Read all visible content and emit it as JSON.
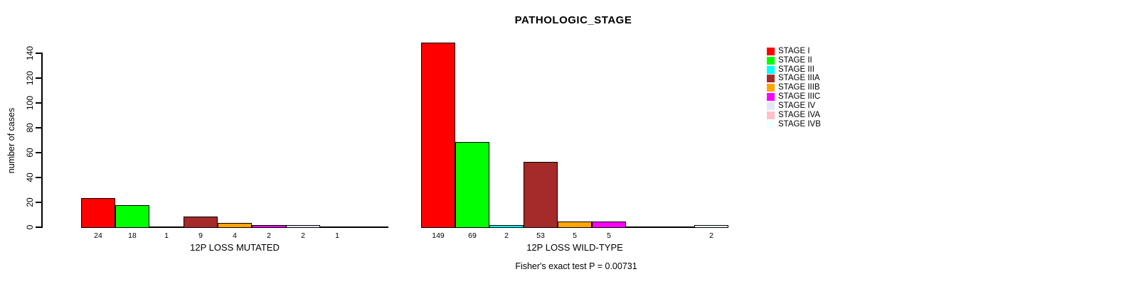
{
  "chart_data": {
    "type": "bar",
    "title": "PATHOLOGIC_STAGE",
    "ylabel": "number of cases",
    "ylim": [
      0,
      140
    ],
    "yticks": [
      0,
      20,
      40,
      60,
      80,
      100,
      120,
      140
    ],
    "grid": false,
    "legend_position": "right",
    "categories": [
      "STAGE I",
      "STAGE II",
      "STAGE III",
      "STAGE IIIA",
      "STAGE IIIB",
      "STAGE IIIC",
      "STAGE IV",
      "STAGE IVA",
      "STAGE IVB"
    ],
    "colors": [
      "#FF0000",
      "#00FF00",
      "#00FFFF",
      "#A52A2A",
      "#FFA500",
      "#FF00FF",
      "#E6E6FA",
      "#FFC0CB",
      "#F0FFFF"
    ],
    "groups": [
      {
        "label": "12P LOSS MUTATED",
        "values": [
          24,
          18,
          1,
          9,
          4,
          2,
          2,
          1,
          0
        ]
      },
      {
        "label": "12P LOSS WILD-TYPE",
        "values": [
          149,
          69,
          2,
          53,
          5,
          5,
          0,
          0,
          2
        ]
      }
    ],
    "annotation": "Fisher's exact test P = 0.00731",
    "legend": [
      {
        "label": "STAGE I",
        "color": "#FF0000"
      },
      {
        "label": "STAGE II",
        "color": "#00FF00"
      },
      {
        "label": "STAGE III",
        "color": "#00FFFF"
      },
      {
        "label": "STAGE IIIA",
        "color": "#A52A2A"
      },
      {
        "label": "STAGE IIIB",
        "color": "#FFA500"
      },
      {
        "label": "STAGE IIIC",
        "color": "#FF00FF"
      },
      {
        "label": "STAGE IV",
        "color": "#E6E6FA"
      },
      {
        "label": "STAGE IVA",
        "color": "#FFC0CB"
      },
      {
        "label": "STAGE IVB",
        "color": "#F0FFFF"
      }
    ]
  }
}
